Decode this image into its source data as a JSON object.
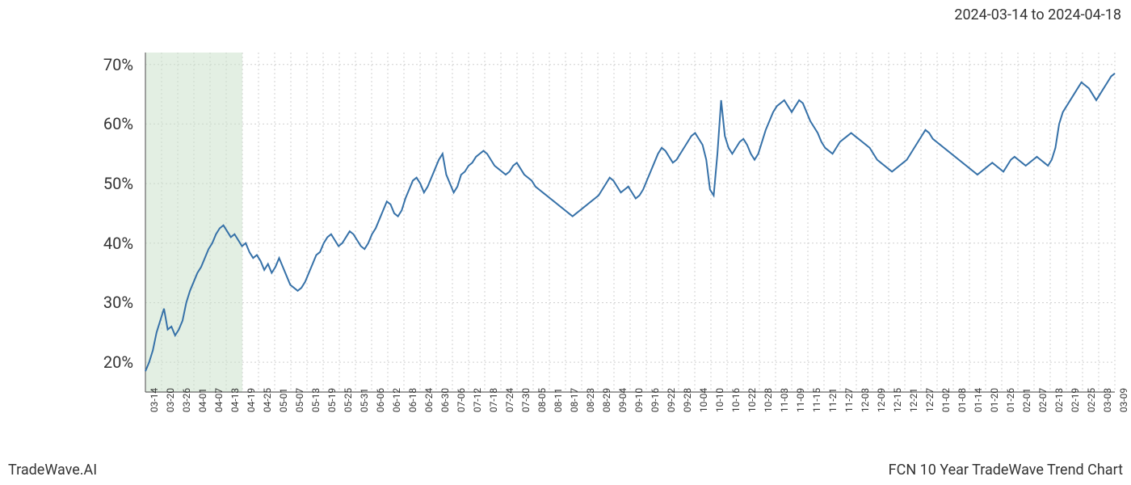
{
  "header": {
    "date_range": "2024-03-14 to 2024-04-18"
  },
  "footer": {
    "left": "TradeWave.AI",
    "right": "FCN 10 Year TradeWave Trend Chart"
  },
  "chart": {
    "type": "line",
    "background_color": "#ffffff",
    "grid_color": "#d0d0d0",
    "grid_dash": "2,3",
    "border_color": "#666666",
    "line_color": "#3671a8",
    "line_width": 2,
    "highlight_band": {
      "fill": "#c8e0c8",
      "opacity": 0.5,
      "x_start_index": 0,
      "x_end_index": 6
    },
    "y_axis": {
      "min": 15,
      "max": 72,
      "ticks": [
        20,
        30,
        40,
        50,
        60,
        70
      ],
      "tick_labels": [
        "20%",
        "30%",
        "40%",
        "50%",
        "60%",
        "70%"
      ],
      "label_fontsize": 20,
      "label_color": "#333333"
    },
    "x_axis": {
      "labels": [
        "03-14",
        "03-20",
        "03-26",
        "04-01",
        "04-07",
        "04-13",
        "04-19",
        "04-25",
        "05-01",
        "05-07",
        "05-13",
        "05-19",
        "05-25",
        "05-31",
        "06-06",
        "06-12",
        "06-18",
        "06-24",
        "06-30",
        "07-06",
        "07-12",
        "07-18",
        "07-24",
        "07-30",
        "08-05",
        "08-11",
        "08-17",
        "08-23",
        "08-29",
        "09-04",
        "09-10",
        "09-16",
        "09-22",
        "09-28",
        "10-04",
        "10-10",
        "10-16",
        "10-22",
        "10-28",
        "11-03",
        "11-09",
        "11-15",
        "11-21",
        "11-27",
        "12-03",
        "12-09",
        "12-15",
        "12-21",
        "12-27",
        "01-02",
        "01-08",
        "01-14",
        "01-20",
        "01-26",
        "02-01",
        "02-07",
        "02-13",
        "02-19",
        "02-25",
        "03-03",
        "03-09"
      ],
      "label_fontsize": 12,
      "label_color": "#333333",
      "rotation": -90
    },
    "series": {
      "values": [
        18.5,
        20,
        22,
        25,
        27,
        29,
        25.5,
        26,
        24.5,
        25.5,
        27,
        30,
        32,
        33.5,
        35,
        36,
        37.5,
        39,
        40,
        41.5,
        42.5,
        43,
        42,
        41,
        41.5,
        40.5,
        39.5,
        40,
        38.5,
        37.5,
        38,
        37,
        35.5,
        36.5,
        35,
        36,
        37.5,
        36,
        34.5,
        33,
        32.5,
        32,
        32.5,
        33.5,
        35,
        36.5,
        38,
        38.5,
        40,
        41,
        41.5,
        40.5,
        39.5,
        40,
        41,
        42,
        41.5,
        40.5,
        39.5,
        39,
        40,
        41.5,
        42.5,
        44,
        45.5,
        47,
        46.5,
        45,
        44.5,
        45.5,
        47.5,
        49,
        50.5,
        51,
        50,
        48.5,
        49.5,
        51,
        52.5,
        54,
        55,
        51.5,
        50,
        48.5,
        49.5,
        51.5,
        52,
        53,
        53.5,
        54.5,
        55,
        55.5,
        55,
        54,
        53,
        52.5,
        52,
        51.5,
        52,
        53,
        53.5,
        52.5,
        51.5,
        51,
        50.5,
        49.5,
        49,
        48.5,
        48,
        47.5,
        47,
        46.5,
        46,
        45.5,
        45,
        44.5,
        45,
        45.5,
        46,
        46.5,
        47,
        47.5,
        48,
        49,
        50,
        51,
        50.5,
        49.5,
        48.5,
        49,
        49.5,
        48.5,
        47.5,
        48,
        49,
        50.5,
        52,
        53.5,
        55,
        56,
        55.5,
        54.5,
        53.5,
        54,
        55,
        56,
        57,
        58,
        58.5,
        57.5,
        56.5,
        54,
        49,
        48,
        55,
        64,
        58,
        56,
        55,
        56,
        57,
        57.5,
        56.5,
        55,
        54,
        55,
        57,
        59,
        60.5,
        62,
        63,
        63.5,
        64,
        63,
        62,
        63,
        64,
        63.5,
        62,
        60.5,
        59.5,
        58.5,
        57,
        56,
        55.5,
        55,
        56,
        57,
        57.5,
        58,
        58.5,
        58,
        57.5,
        57,
        56.5,
        56,
        55,
        54,
        53.5,
        53,
        52.5,
        52,
        52.5,
        53,
        53.5,
        54,
        55,
        56,
        57,
        58,
        59,
        58.5,
        57.5,
        57,
        56.5,
        56,
        55.5,
        55,
        54.5,
        54,
        53.5,
        53,
        52.5,
        52,
        51.5,
        52,
        52.5,
        53,
        53.5,
        53,
        52.5,
        52,
        53,
        54,
        54.5,
        54,
        53.5,
        53,
        53.5,
        54,
        54.5,
        54,
        53.5,
        53,
        54,
        56,
        60,
        62,
        63,
        64,
        65,
        66,
        67,
        66.5,
        66,
        65,
        64,
        65,
        66,
        67,
        68,
        68.5
      ]
    }
  }
}
